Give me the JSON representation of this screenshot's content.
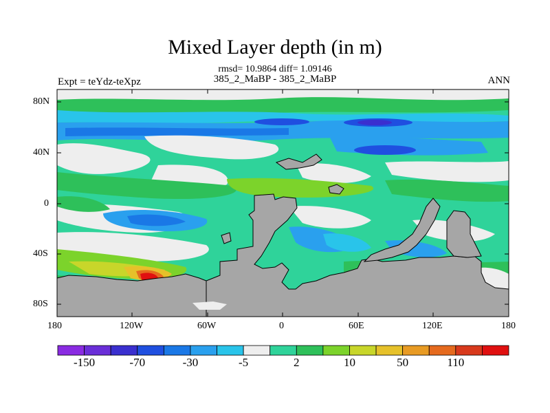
{
  "title": "Mixed Layer depth (in m)",
  "stats": "rmsd= 10.9864 diff= 1.09146",
  "subtitle": "385_2_MaBP - 385_2_MaBP",
  "left_label": "Expt = teYdz-teXpz",
  "right_label": "ANN",
  "lat_labels": [
    "80N",
    "40N",
    "0",
    "40S",
    "80S"
  ],
  "lon_labels": [
    "180",
    "120W",
    "60W",
    "0",
    "60E",
    "120E",
    "180"
  ],
  "colorbar": {
    "colors": [
      "#8a2be2",
      "#6a2ed8",
      "#3a2fcf",
      "#1f4fe0",
      "#1a78e6",
      "#2aa0ee",
      "#29c4ea",
      "#eeeeee",
      "#2fd39a",
      "#2ec05a",
      "#7cd32b",
      "#c8d62a",
      "#e6c12a",
      "#e89b24",
      "#e56a1e",
      "#d8391c",
      "#e01010"
    ],
    "labels": [
      "-150",
      "-70",
      "-30",
      "-5",
      "2",
      "10",
      "50",
      "110"
    ]
  }
}
